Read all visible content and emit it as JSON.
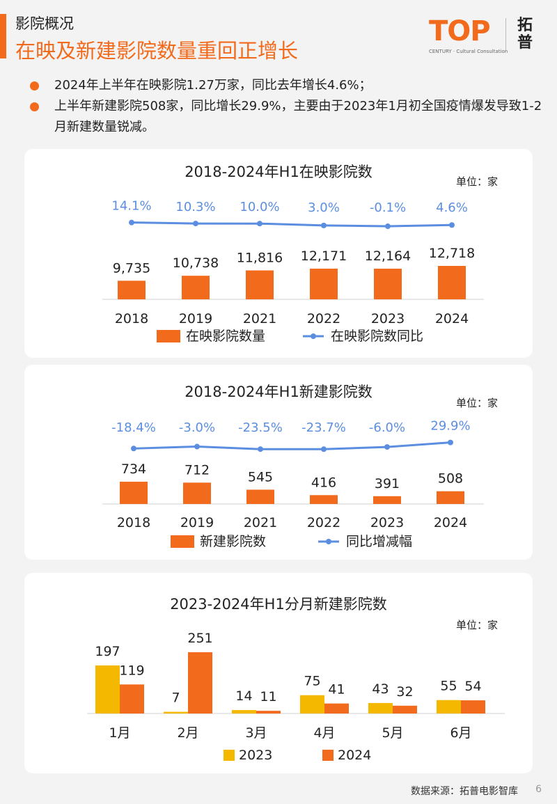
{
  "header": {
    "section_label": "影院概况",
    "headline": "在映及新建影院数量重回正增长",
    "logo": {
      "wordmark": "TOP",
      "subtitle": "CENTURY · Cultural Consultation",
      "chinese_line1": "拓",
      "chinese_line2": "普"
    }
  },
  "bullets": [
    "2024年上半年在映影院1.27万家，同比去年增长4.6%；",
    "上半年新建影院508家，同比增长29.9%，主要由于2023年1月初全国疫情爆发导致1-2月新建数量锐减。"
  ],
  "footer": {
    "source": "数据来源：拓普电影智库",
    "page_number": "6"
  },
  "colors": {
    "accent": "#f26a1b",
    "bar_2024": "#f26a1b",
    "bar_2023": "#f5b800",
    "line": "#5b8ee0",
    "line_label": "#5b8ee0"
  },
  "chart_data": [
    {
      "type": "bar",
      "title": "2018-2024年H1在映影院数",
      "unit_label": "单位：家",
      "categories": [
        "2018",
        "2019",
        "2021",
        "2022",
        "2023",
        "2024"
      ],
      "series": [
        {
          "name": "在映影院数量",
          "kind": "bar",
          "values": [
            9735,
            10738,
            11816,
            12171,
            12164,
            12718
          ],
          "labels": [
            "9,735",
            "10,738",
            "11,816",
            "12,171",
            "12,164",
            "12,718"
          ]
        },
        {
          "name": "在映影院数同比",
          "kind": "line",
          "values": [
            14.1,
            10.3,
            10.0,
            3.0,
            -0.1,
            4.6
          ],
          "labels": [
            "14.1%",
            "10.3%",
            "10.0%",
            "3.0%",
            "-0.1%",
            "4.6%"
          ]
        }
      ]
    },
    {
      "type": "bar",
      "title": "2018-2024年H1新建影院数",
      "unit_label": "单位：家",
      "categories": [
        "2018",
        "2019",
        "2021",
        "2022",
        "2023",
        "2024"
      ],
      "series": [
        {
          "name": "新建影院数",
          "kind": "bar",
          "values": [
            734,
            712,
            545,
            416,
            391,
            508
          ],
          "labels": [
            "734",
            "712",
            "545",
            "416",
            "391",
            "508"
          ]
        },
        {
          "name": "同比增减幅",
          "kind": "line",
          "values": [
            -18.4,
            -3.0,
            -23.5,
            -23.7,
            -6.0,
            29.9
          ],
          "labels": [
            "-18.4%",
            "-3.0%",
            "-23.5%",
            "-23.7%",
            "-6.0%",
            "29.9%"
          ]
        }
      ]
    },
    {
      "type": "bar",
      "title": "2023-2024年H1分月新建影院数",
      "unit_label": "单位：家",
      "categories": [
        "1月",
        "2月",
        "3月",
        "4月",
        "5月",
        "6月"
      ],
      "series": [
        {
          "name": "2023",
          "kind": "bar",
          "values": [
            197,
            7,
            14,
            75,
            43,
            55
          ],
          "labels": [
            "197",
            "7",
            "14",
            "75",
            "43",
            "55"
          ]
        },
        {
          "name": "2024",
          "kind": "bar",
          "values": [
            119,
            251,
            11,
            41,
            32,
            54
          ],
          "labels": [
            "119",
            "251",
            "11",
            "41",
            "32",
            "54"
          ]
        }
      ]
    }
  ]
}
